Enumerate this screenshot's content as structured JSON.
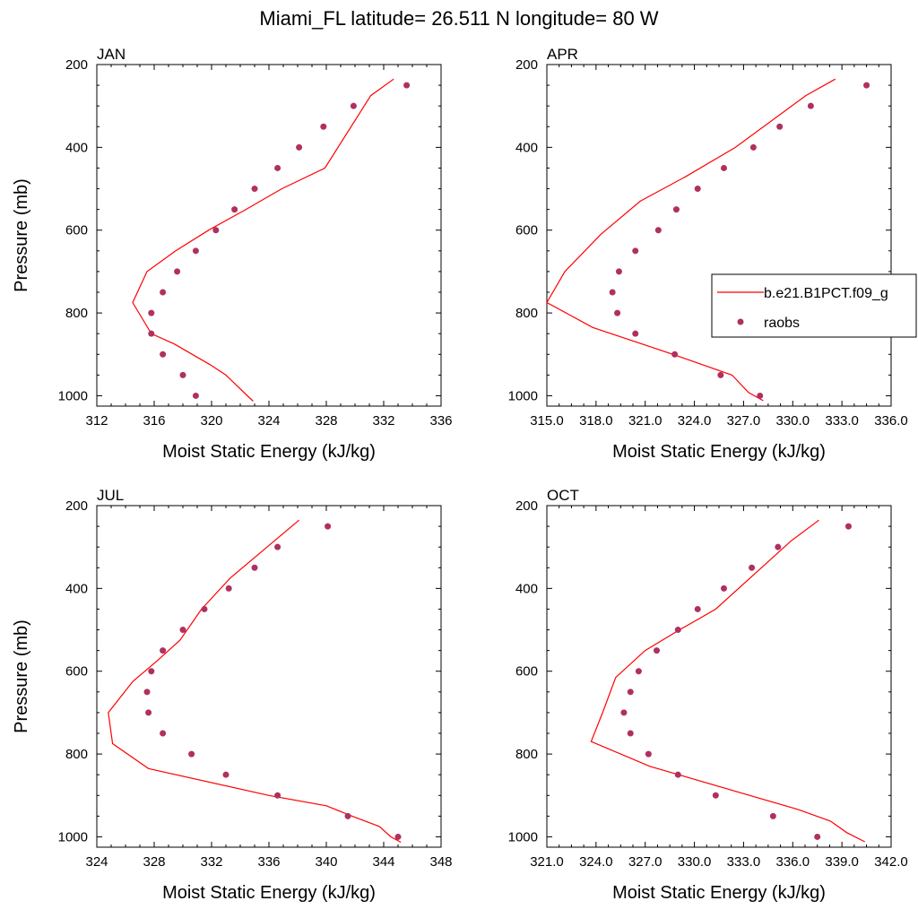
{
  "figure": {
    "title": "Miami_FL  latitude= 26.511 N longitude= 80 W"
  },
  "legend": {
    "panel": "APR",
    "entries": [
      {
        "label": "b.e21.B1PCT.f09_g",
        "marker": "line",
        "color": "#ff0000"
      },
      {
        "label": "raobs",
        "marker": "dot",
        "color": "#b03060"
      }
    ]
  },
  "colors": {
    "model_line": "#ff0000",
    "obs_marker": "#b03060"
  },
  "chart_data": [
    {
      "type": "scatter",
      "title": "JAN",
      "xlabel": "Moist Static Energy (kJ/kg)",
      "ylabel": "Pressure (mb)",
      "xlim": [
        312,
        336
      ],
      "ylim": [
        200,
        1025
      ],
      "y_inverted": true,
      "xticks": [
        312,
        316,
        320,
        324,
        328,
        332,
        336
      ],
      "xtick_labels": [
        "312",
        "316",
        "320",
        "324",
        "328",
        "332",
        "336"
      ],
      "yticks": [
        200,
        400,
        600,
        800,
        1000
      ],
      "ytick_labels": [
        "200",
        "400",
        "600",
        "800",
        "1000"
      ],
      "series": [
        {
          "name": "b.e21.B1PCT.f09_g",
          "style": "line",
          "x": [
            322.9,
            322.5,
            321.0,
            319.9,
            317.4,
            315.8,
            314.5,
            315.5,
            317.5,
            319.8,
            322.4,
            324.9,
            327.9,
            331.1,
            332.7
          ],
          "y": [
            1013,
            1000,
            950,
            925,
            875,
            850,
            775,
            700,
            650,
            600,
            550,
            500,
            450,
            275,
            235
          ]
        },
        {
          "name": "raobs",
          "style": "markers",
          "x": [
            318.9,
            318.0,
            316.6,
            315.8,
            315.8,
            316.6,
            317.6,
            318.9,
            320.3,
            321.6,
            323.0,
            324.6,
            326.1,
            327.8,
            329.9,
            333.6
          ],
          "y": [
            1000,
            950,
            900,
            850,
            800,
            750,
            700,
            650,
            600,
            550,
            500,
            450,
            400,
            350,
            300,
            250
          ]
        }
      ]
    },
    {
      "type": "scatter",
      "title": "APR",
      "xlabel": "Moist Static Energy (kJ/kg)",
      "ylabel": "",
      "xlim": [
        315.0,
        336.0
      ],
      "ylim": [
        200,
        1025
      ],
      "y_inverted": true,
      "xticks": [
        315,
        318,
        321,
        324,
        327,
        330,
        333,
        336
      ],
      "xtick_labels": [
        "315.0",
        "318.0",
        "321.0",
        "324.0",
        "327.0",
        "330.0",
        "333.0",
        "336.0"
      ],
      "yticks": [
        200,
        400,
        600,
        800,
        1000
      ],
      "ytick_labels": [
        "200",
        "400",
        "600",
        "800",
        "1000"
      ],
      "series": [
        {
          "name": "b.e21.B1PCT.f09_g",
          "style": "line",
          "x": [
            328.2,
            327.3,
            326.3,
            322.7,
            317.8,
            315.0,
            316.1,
            318.3,
            320.7,
            323.5,
            326.5,
            330.8,
            332.6
          ],
          "y": [
            1012,
            992,
            950,
            900,
            835,
            775,
            700,
            610,
            530,
            470,
            400,
            275,
            235
          ]
        },
        {
          "name": "raobs",
          "style": "markers",
          "x": [
            328.0,
            325.6,
            322.8,
            320.4,
            319.3,
            319.0,
            319.4,
            320.4,
            321.8,
            322.9,
            324.2,
            325.8,
            327.6,
            329.2,
            331.1,
            334.5
          ],
          "y": [
            1000,
            950,
            900,
            850,
            800,
            750,
            700,
            650,
            600,
            550,
            500,
            450,
            400,
            350,
            300,
            250
          ]
        }
      ]
    },
    {
      "type": "scatter",
      "title": "JUL",
      "xlabel": "Moist Static Energy (kJ/kg)",
      "ylabel": "Pressure (mb)",
      "xlim": [
        324,
        348
      ],
      "ylim": [
        200,
        1025
      ],
      "y_inverted": true,
      "xticks": [
        324,
        328,
        332,
        336,
        340,
        344,
        348
      ],
      "xtick_labels": [
        "324",
        "328",
        "332",
        "336",
        "340",
        "344",
        "348"
      ],
      "yticks": [
        200,
        400,
        600,
        800,
        1000
      ],
      "ytick_labels": [
        "200",
        "400",
        "600",
        "800",
        "1000"
      ],
      "series": [
        {
          "name": "b.e21.B1PCT.f09_g",
          "style": "line",
          "x": [
            345.2,
            344.5,
            343.7,
            341.8,
            340.0,
            336.0,
            327.6,
            325.1,
            324.8,
            326.5,
            328.2,
            329.8,
            331.3,
            333.3,
            338.1
          ],
          "y": [
            1013,
            1000,
            975,
            950,
            925,
            900,
            835,
            775,
            700,
            625,
            575,
            525,
            450,
            375,
            235
          ]
        },
        {
          "name": "raobs",
          "style": "markers",
          "x": [
            345.0,
            341.5,
            336.6,
            333.0,
            330.6,
            328.6,
            327.6,
            327.5,
            327.8,
            328.6,
            330.0,
            331.5,
            333.2,
            335.0,
            336.6,
            340.1
          ],
          "y": [
            1000,
            950,
            900,
            850,
            800,
            750,
            700,
            650,
            600,
            550,
            500,
            450,
            400,
            350,
            300,
            250
          ]
        }
      ]
    },
    {
      "type": "scatter",
      "title": "OCT",
      "xlabel": "Moist Static Energy (kJ/kg)",
      "ylabel": "",
      "xlim": [
        321.0,
        342.0
      ],
      "ylim": [
        200,
        1025
      ],
      "y_inverted": true,
      "xticks": [
        321,
        324,
        327,
        330,
        333,
        336,
        339,
        342
      ],
      "xtick_labels": [
        "321.0",
        "324.0",
        "327.0",
        "330.0",
        "333.0",
        "336.0",
        "339.0",
        "342.0"
      ],
      "yticks": [
        200,
        400,
        600,
        800,
        1000
      ],
      "ytick_labels": [
        "200",
        "400",
        "600",
        "800",
        "1000"
      ],
      "series": [
        {
          "name": "b.e21.B1PCT.f09_g",
          "style": "line",
          "x": [
            340.4,
            339.3,
            338.3,
            336.4,
            327.3,
            323.7,
            324.4,
            325.2,
            327.0,
            329.1,
            331.3,
            335.9,
            337.6
          ],
          "y": [
            1012,
            990,
            962,
            935,
            830,
            770,
            700,
            615,
            550,
            500,
            450,
            285,
            235
          ]
        },
        {
          "name": "raobs",
          "style": "markers",
          "x": [
            337.5,
            334.8,
            331.3,
            329.0,
            327.2,
            326.1,
            325.7,
            326.1,
            326.6,
            327.7,
            329.0,
            330.2,
            331.8,
            333.5,
            335.1,
            339.4
          ],
          "y": [
            1000,
            950,
            900,
            850,
            800,
            750,
            700,
            650,
            600,
            550,
            500,
            450,
            400,
            350,
            300,
            250
          ]
        }
      ]
    }
  ]
}
